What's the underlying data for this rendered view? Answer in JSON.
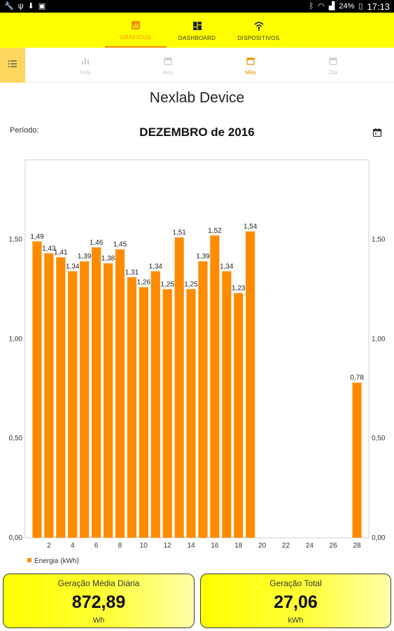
{
  "status_bar": {
    "battery": "24%",
    "time": "17:13"
  },
  "top_nav": {
    "tabs": [
      {
        "label": "GRÁFICOS",
        "icon": "chart-icon",
        "active": true
      },
      {
        "label": "DASHBOARD",
        "icon": "dashboard-icon",
        "active": false
      },
      {
        "label": "DISPOSITIVOS",
        "icon": "wifi-device-icon",
        "active": false
      }
    ]
  },
  "sub_tabs": [
    {
      "label": "Vida",
      "icon": "bar-chart-icon",
      "active": false
    },
    {
      "label": "Ano",
      "icon": "calendar-icon",
      "active": false
    },
    {
      "label": "Mês",
      "icon": "calendar-icon",
      "active": true
    },
    {
      "label": "Dia",
      "icon": "calendar-icon",
      "active": false
    }
  ],
  "device_name": "Nexlab Device",
  "period": {
    "label": "Período:",
    "value": "DEZEMBRO de 2016"
  },
  "colors": {
    "accent": "#f28c00",
    "bar": "#ff8c00",
    "nav_bg": "#ffff00"
  },
  "chart_data": {
    "type": "bar",
    "x": [
      1,
      2,
      3,
      4,
      5,
      6,
      7,
      8,
      9,
      10,
      11,
      12,
      13,
      14,
      15,
      16,
      17,
      18,
      19,
      28
    ],
    "values": [
      1.49,
      1.43,
      1.41,
      1.34,
      1.39,
      1.46,
      1.38,
      1.45,
      1.31,
      1.26,
      1.34,
      1.25,
      1.51,
      1.25,
      1.39,
      1.52,
      1.34,
      1.23,
      1.54,
      0.78
    ],
    "value_labels": [
      "1,49",
      "1,43",
      "1,41",
      "1,34",
      "1,39",
      "1,46",
      "1,38",
      "1,45",
      "1,31",
      "1,26",
      "1,34",
      "1,25",
      "1,51",
      "1,25",
      "1,39",
      "1,52",
      "1,34",
      "1,23",
      "1,54",
      "0,78"
    ],
    "xlim": [
      0,
      29
    ],
    "ylim": [
      0,
      1.9
    ],
    "x_ticks": [
      2,
      4,
      6,
      8,
      10,
      12,
      14,
      16,
      18,
      20,
      22,
      24,
      26,
      28
    ],
    "x_tick_labels": [
      "2",
      "4",
      "6",
      "8",
      "10",
      "12",
      "14",
      "16",
      "18",
      "20",
      "22",
      "24",
      "26",
      "28"
    ],
    "y_ticks": [
      0,
      0.5,
      1.0,
      1.5
    ],
    "y_tick_labels": [
      "0,00",
      "0,50",
      "1,00",
      "1,50"
    ],
    "grid": false,
    "legend_position": "bottom-left",
    "series": [
      {
        "name": "Energia (kWh)"
      }
    ]
  },
  "summary": [
    {
      "title": "Geração Média Diária",
      "value": "872,89",
      "unit": "Wh"
    },
    {
      "title": "Geração Total",
      "value": "27,06",
      "unit": "kWh"
    }
  ]
}
